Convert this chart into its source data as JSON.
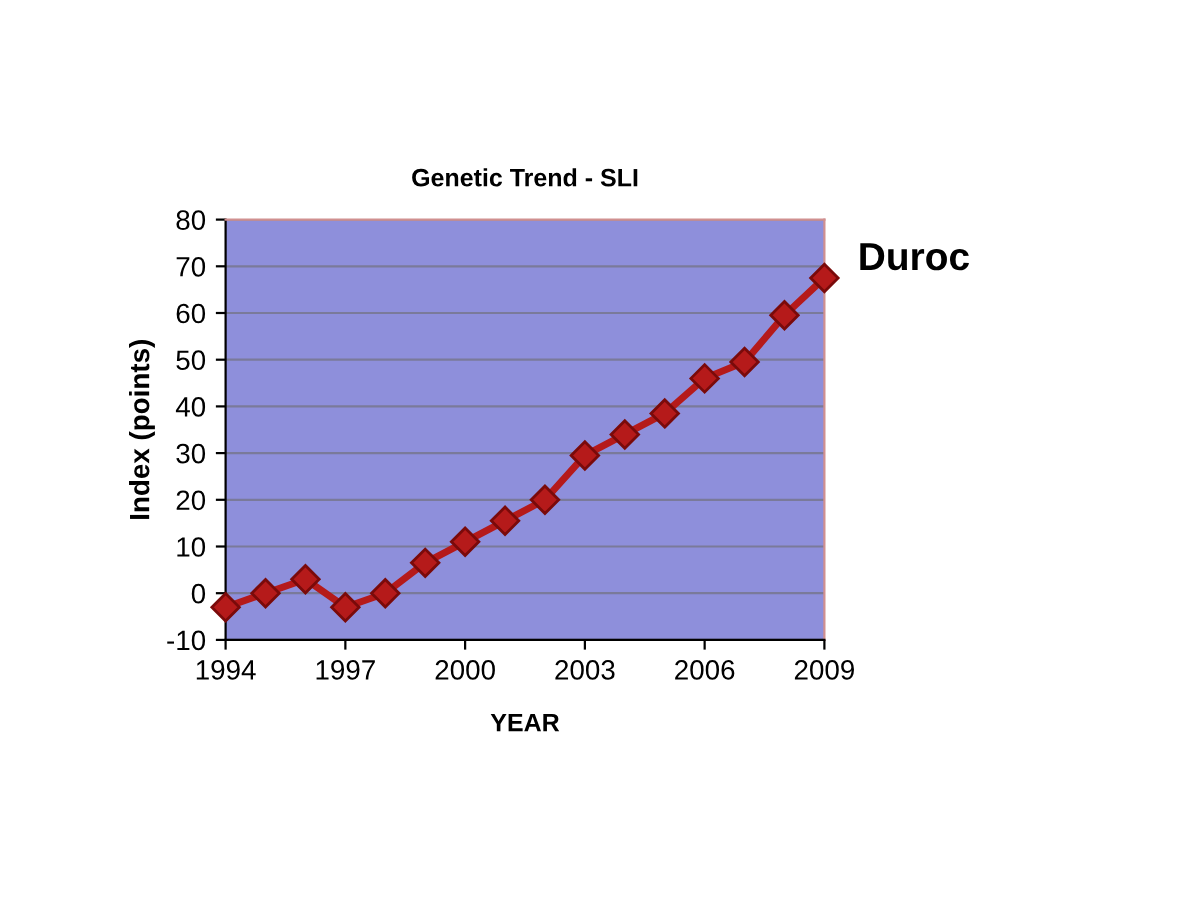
{
  "chart_data": {
    "type": "line",
    "title": "Genetic Trend - SLI",
    "xlabel": "YEAR",
    "ylabel": "Index (points)",
    "x": [
      1994,
      1995,
      1996,
      1997,
      1998,
      1999,
      2000,
      2001,
      2002,
      2003,
      2004,
      2005,
      2006,
      2007,
      2008,
      2009
    ],
    "series": [
      {
        "name": "Duroc",
        "color": "#b51a1a",
        "values": [
          -3,
          0,
          3,
          -3,
          0,
          6.5,
          11,
          15.5,
          20,
          29.5,
          34,
          38.5,
          46,
          49.5,
          59.5,
          67.5
        ]
      }
    ],
    "xlim": [
      1994,
      2009
    ],
    "xticks": [
      1994,
      1997,
      2000,
      2003,
      2006,
      2009
    ],
    "ylim": [
      -10,
      80
    ],
    "yticks": [
      -10,
      0,
      10,
      20,
      30,
      40,
      50,
      60,
      70,
      80
    ],
    "grid": "y",
    "marker": "diamond",
    "line_style": "solid"
  }
}
